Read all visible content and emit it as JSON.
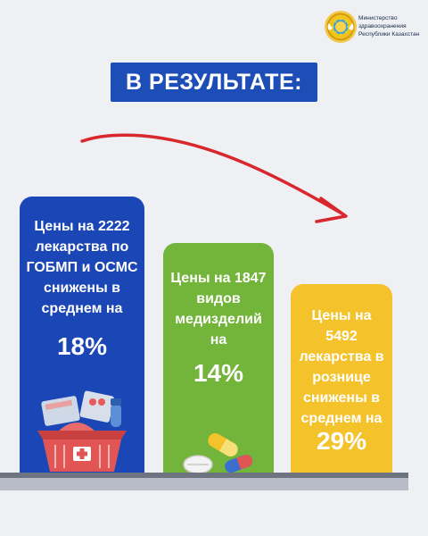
{
  "logo": {
    "line1": "Министерство",
    "line2": "здравоохранения",
    "line3": "Республики Казахстан"
  },
  "headline": "В РЕЗУЛЬТАТЕ:",
  "cards": [
    {
      "desc": "Цены на 2222 лекарства по ГОБМП и ОСМС снижены в среднем на",
      "pct": "18%",
      "color": "#1a46b6"
    },
    {
      "desc": "Цены на 1847 видов медизделий на",
      "pct": "14%",
      "color": "#73b43a"
    },
    {
      "desc": "Цены на 5492 лекарства в рознице снижены в среднем на",
      "pct": "29%",
      "color": "#f4c22b"
    }
  ],
  "colors": {
    "accent": "#1d4eb8",
    "arrow": "#d8282e",
    "background": "#eef0f4"
  },
  "icons": [
    "state-emblem-icon",
    "trend-arrow-icon",
    "medicine-basket-icon",
    "pills-icon"
  ]
}
